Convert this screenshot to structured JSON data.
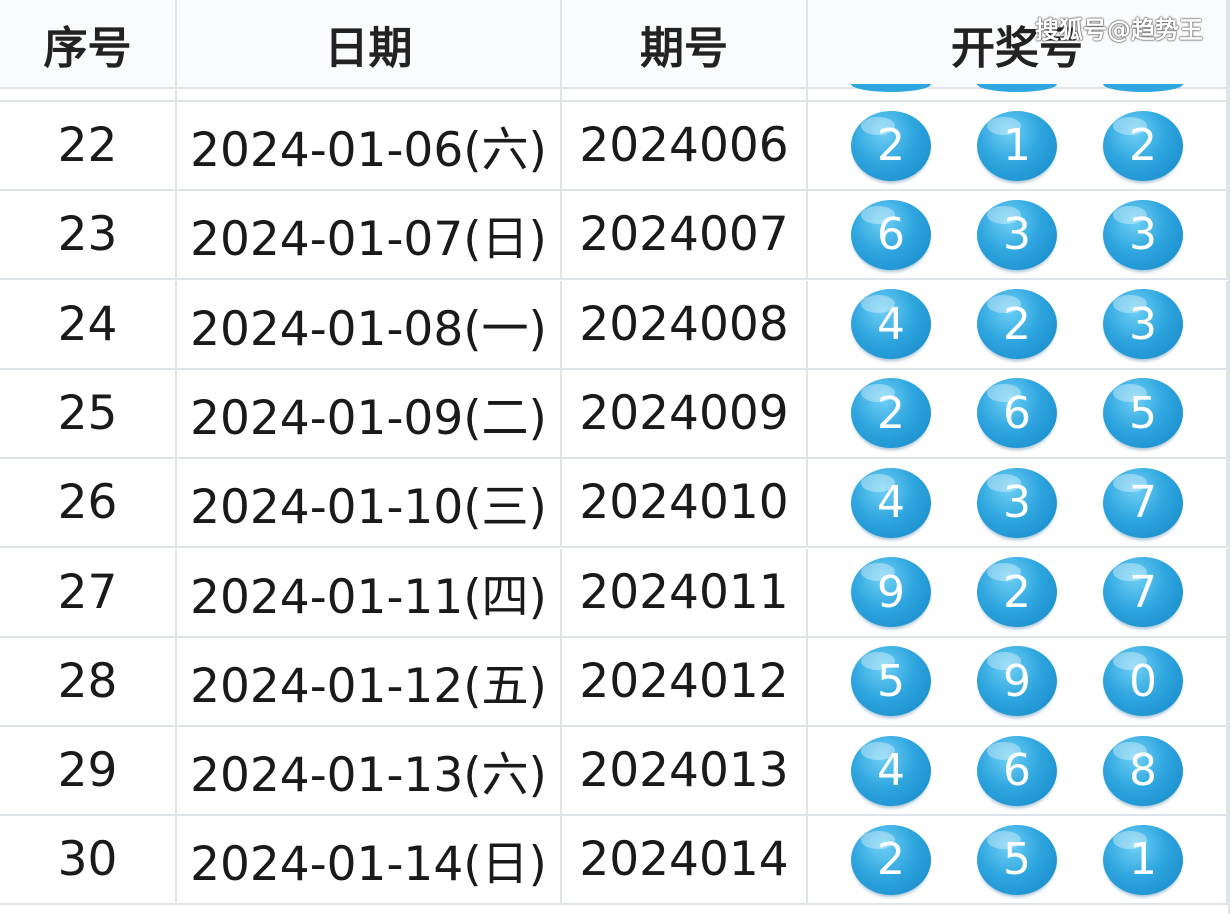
{
  "header": {
    "index": "序号",
    "date": "日期",
    "issue": "期号",
    "numbers": "开奖号"
  },
  "watermark": "搜狐号@趋势王",
  "ball_color": "#2fa6df",
  "rows": [
    {
      "index": "22",
      "date": "2024-01-06(六)",
      "issue": "2024006",
      "balls": [
        "2",
        "1",
        "2"
      ]
    },
    {
      "index": "23",
      "date": "2024-01-07(日)",
      "issue": "2024007",
      "balls": [
        "6",
        "3",
        "3"
      ]
    },
    {
      "index": "24",
      "date": "2024-01-08(一)",
      "issue": "2024008",
      "balls": [
        "4",
        "2",
        "3"
      ]
    },
    {
      "index": "25",
      "date": "2024-01-09(二)",
      "issue": "2024009",
      "balls": [
        "2",
        "6",
        "5"
      ]
    },
    {
      "index": "26",
      "date": "2024-01-10(三)",
      "issue": "2024010",
      "balls": [
        "4",
        "3",
        "7"
      ]
    },
    {
      "index": "27",
      "date": "2024-01-11(四)",
      "issue": "2024011",
      "balls": [
        "9",
        "2",
        "7"
      ]
    },
    {
      "index": "28",
      "date": "2024-01-12(五)",
      "issue": "2024012",
      "balls": [
        "5",
        "9",
        "0"
      ]
    },
    {
      "index": "29",
      "date": "2024-01-13(六)",
      "issue": "2024013",
      "balls": [
        "4",
        "6",
        "8"
      ]
    },
    {
      "index": "30",
      "date": "2024-01-14(日)",
      "issue": "2024014",
      "balls": [
        "2",
        "5",
        "1"
      ]
    }
  ]
}
